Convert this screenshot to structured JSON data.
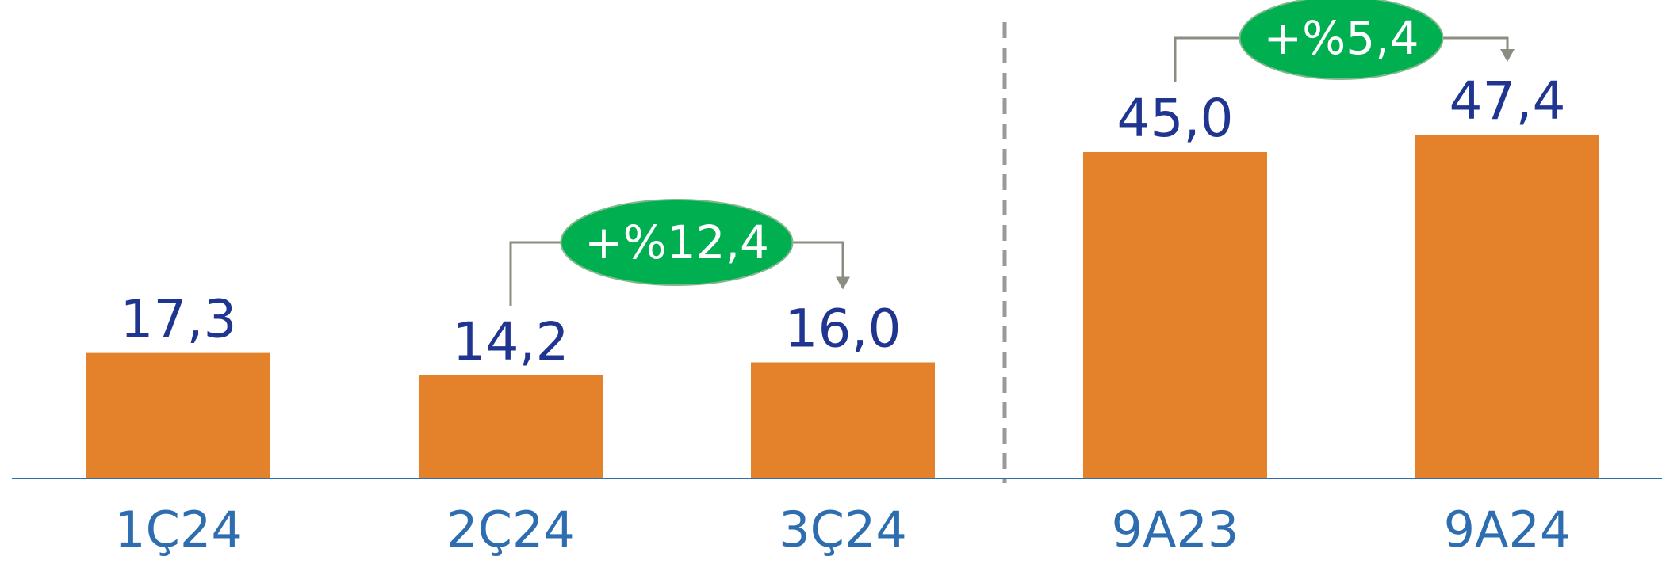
{
  "chart_data": {
    "type": "bar",
    "categories": [
      "1Ç24",
      "2Ç24",
      "3Ç24",
      "9A23",
      "9A24"
    ],
    "values": [
      17.3,
      14.2,
      16.0,
      45.0,
      47.4
    ],
    "value_labels": [
      "17,3",
      "14,2",
      "16,0",
      "45,0",
      "47,4"
    ],
    "title": "",
    "xlabel": "",
    "ylabel": "",
    "ylim": [
      0,
      47.4
    ],
    "grid": false,
    "legend": "none",
    "separator_after_category": "3Ç24",
    "annotations": [
      {
        "from": "2Ç24",
        "to": "3Ç24",
        "label": "+%12,4"
      },
      {
        "from": "9A23",
        "to": "9A24",
        "label": "+%5,4"
      }
    ]
  },
  "colors": {
    "bar": "#e3822a",
    "value_label": "#1f3590",
    "tick_label": "#2e6eb0",
    "baseline": "#2e6eb0",
    "separator": "#9a9a9a",
    "badge": "#00b050",
    "connector": "#8c8c80"
  }
}
